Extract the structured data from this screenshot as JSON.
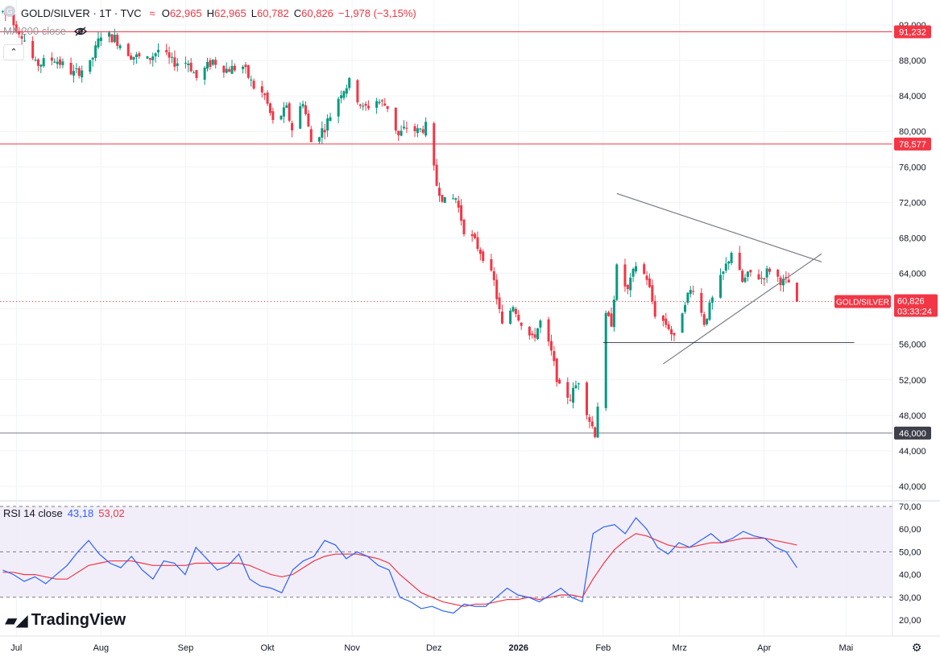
{
  "header": {
    "symbol_line": "GOLD/SILVER · 1T · TVC",
    "wave_icon": "≈",
    "open_label": "O",
    "open": "62,965",
    "high_label": "H",
    "high": "62,965",
    "low_label": "L",
    "low": "60,782",
    "close_label": "C",
    "close": "60,826",
    "change": "−1,978 (−3,15%)"
  },
  "ma_label": "MA 200 close",
  "rsi_header": {
    "label": "RSI 14 close",
    "rsi_value": "43,18",
    "ma_value": "53,02"
  },
  "branding": {
    "name": "TradingView"
  },
  "price_tag": {
    "symbol": "GOLD/SILVER",
    "value": "60,826",
    "countdown": "03:33:24"
  },
  "horizontal_levels": [
    {
      "value": 91.232,
      "label": "91,232",
      "color": "#f23645"
    },
    {
      "value": 78.577,
      "label": "78,577",
      "color": "#f23645"
    },
    {
      "value": 46.0,
      "label": "46,000",
      "color": "#787b86"
    }
  ],
  "colors": {
    "up": "#089981",
    "down": "#f23645",
    "rsi_line": "#2962ff",
    "rsi_ma": "#f23645",
    "trendline": "#787b86",
    "rsi_band": "#ede7f6"
  },
  "chart_data": {
    "type": "candlestick",
    "x_ticks": [
      "Jul",
      "Aug",
      "Sep",
      "Okt",
      "Nov",
      "Dez",
      "2026",
      "Feb",
      "Mrz",
      "Apr",
      "Mai"
    ],
    "y_ticks": [
      "40,000",
      "44,000",
      "48,000",
      "52,000",
      "56,000",
      "60,000",
      "64,000",
      "68,000",
      "72,000",
      "76,000",
      "80,000",
      "84,000",
      "88,000",
      "92,000"
    ],
    "ylim": [
      38.2,
      93.5
    ],
    "last_candle": {
      "open": 62.965,
      "high": 62.965,
      "low": 60.782,
      "close": 60.826
    },
    "series_close": [
      {
        "date": "2025-06-26",
        "close": 93.5
      },
      {
        "date": "2025-07-03",
        "close": 91.0
      },
      {
        "date": "2025-07-08",
        "close": 87.5
      },
      {
        "date": "2025-07-15",
        "close": 88.2
      },
      {
        "date": "2025-07-22",
        "close": 86.5
      },
      {
        "date": "2025-07-28",
        "close": 87.5
      },
      {
        "date": "2025-08-01",
        "close": 91.0
      },
      {
        "date": "2025-08-06",
        "close": 90.5
      },
      {
        "date": "2025-08-12",
        "close": 88.6
      },
      {
        "date": "2025-08-18",
        "close": 88.0
      },
      {
        "date": "2025-08-22",
        "close": 89.2
      },
      {
        "date": "2025-08-27",
        "close": 87.8
      },
      {
        "date": "2025-09-02",
        "close": 87.8
      },
      {
        "date": "2025-09-05",
        "close": 86.0
      },
      {
        "date": "2025-09-11",
        "close": 88.0
      },
      {
        "date": "2025-09-16",
        "close": 87.0
      },
      {
        "date": "2025-09-22",
        "close": 87.3
      },
      {
        "date": "2025-09-26",
        "close": 85.0
      },
      {
        "date": "2025-09-30",
        "close": 84.0
      },
      {
        "date": "2025-10-03",
        "close": 81.0
      },
      {
        "date": "2025-10-08",
        "close": 82.5
      },
      {
        "date": "2025-10-10",
        "close": 80.3
      },
      {
        "date": "2025-10-14",
        "close": 83.5
      },
      {
        "date": "2025-10-17",
        "close": 78.8
      },
      {
        "date": "2025-10-22",
        "close": 80.5
      },
      {
        "date": "2025-10-28",
        "close": 84.5
      },
      {
        "date": "2025-10-31",
        "close": 85.5
      },
      {
        "date": "2025-11-05",
        "close": 82.5
      },
      {
        "date": "2025-11-10",
        "close": 83.5
      },
      {
        "date": "2025-11-14",
        "close": 82.8
      },
      {
        "date": "2025-11-18",
        "close": 79.5
      },
      {
        "date": "2025-11-21",
        "close": 80.5
      },
      {
        "date": "2025-11-25",
        "close": 80.0
      },
      {
        "date": "2025-11-28",
        "close": 80.5
      },
      {
        "date": "2025-12-02",
        "close": 74.0
      },
      {
        "date": "2025-12-05",
        "close": 72.0
      },
      {
        "date": "2025-12-09",
        "close": 72.5
      },
      {
        "date": "2025-12-12",
        "close": 69.0
      },
      {
        "date": "2025-12-16",
        "close": 67.5
      },
      {
        "date": "2025-12-19",
        "close": 66.0
      },
      {
        "date": "2025-12-23",
        "close": 63.0
      },
      {
        "date": "2025-12-26",
        "close": 58.0
      },
      {
        "date": "2025-12-30",
        "close": 60.5
      },
      {
        "date": "2026-01-02",
        "close": 58.5
      },
      {
        "date": "2026-01-06",
        "close": 56.5
      },
      {
        "date": "2026-01-09",
        "close": 58.5
      },
      {
        "date": "2026-01-13",
        "close": 55.0
      },
      {
        "date": "2026-01-16",
        "close": 51.0
      },
      {
        "date": "2026-01-20",
        "close": 50.0
      },
      {
        "date": "2026-01-23",
        "close": 52.0
      },
      {
        "date": "2026-01-27",
        "close": 47.5
      },
      {
        "date": "2026-01-29",
        "close": 46.0
      },
      {
        "date": "2026-02-02",
        "close": 59.0
      },
      {
        "date": "2026-02-04",
        "close": 58.5
      },
      {
        "date": "2026-02-06",
        "close": 64.5
      },
      {
        "date": "2026-02-10",
        "close": 62.0
      },
      {
        "date": "2026-02-13",
        "close": 65.0
      },
      {
        "date": "2026-02-17",
        "close": 63.5
      },
      {
        "date": "2026-02-20",
        "close": 59.5
      },
      {
        "date": "2026-02-25",
        "close": 58.0
      },
      {
        "date": "2026-02-27",
        "close": 56.5
      },
      {
        "date": "2026-03-03",
        "close": 61.0
      },
      {
        "date": "2026-03-06",
        "close": 62.5
      },
      {
        "date": "2026-03-10",
        "close": 58.5
      },
      {
        "date": "2026-03-13",
        "close": 61.0
      },
      {
        "date": "2026-03-17",
        "close": 64.0
      },
      {
        "date": "2026-03-20",
        "close": 66.5
      },
      {
        "date": "2026-03-24",
        "close": 63.0
      },
      {
        "date": "2026-03-27",
        "close": 64.0
      },
      {
        "date": "2026-03-31",
        "close": 63.5
      },
      {
        "date": "2026-04-03",
        "close": 64.5
      },
      {
        "date": "2026-04-06",
        "close": 63.5
      },
      {
        "date": "2026-04-08",
        "close": 63.0
      },
      {
        "date": "2026-04-10",
        "close": 62.965
      },
      {
        "date": "2026-04-13",
        "close": 60.826
      }
    ],
    "trendlines": [
      {
        "name": "upper",
        "from": {
          "date": "2026-02-06",
          "value": 73.0
        },
        "to": {
          "date": "2026-04-22",
          "value": 65.3
        }
      },
      {
        "name": "lower",
        "from": {
          "date": "2026-02-23",
          "value": 53.8
        },
        "to": {
          "date": "2026-04-22",
          "value": 66.2
        }
      },
      {
        "name": "support",
        "from": {
          "date": "2026-02-01",
          "value": 56.2
        },
        "to": {
          "date": "2026-05-04",
          "value": 56.2
        }
      }
    ],
    "rsi_panel": {
      "y_ticks": [
        "20,00",
        "30,00",
        "40,00",
        "50,00",
        "60,00",
        "70,00"
      ],
      "ylim": [
        15,
        72
      ],
      "overbought": 70,
      "oversold": 30,
      "midline": 50,
      "rsi": [
        42,
        40,
        37,
        39,
        36,
        40,
        44,
        50,
        55,
        49,
        45,
        43,
        48,
        42,
        38,
        46,
        45,
        40,
        52,
        47,
        42,
        44,
        49,
        38,
        35,
        34,
        32,
        42,
        46,
        48,
        55,
        53,
        47,
        50,
        48,
        44,
        42,
        30,
        28,
        25,
        26,
        24,
        23,
        27,
        26,
        26,
        30,
        34,
        31,
        30,
        28,
        31,
        34,
        30,
        28,
        58,
        61,
        62,
        58,
        65,
        60,
        52,
        49,
        54,
        52,
        55,
        58,
        54,
        56,
        59,
        57,
        56,
        52,
        50,
        43
      ],
      "rsi_ma": [
        41,
        41,
        40,
        40,
        39,
        38,
        38,
        41,
        44,
        45,
        46,
        46,
        46,
        45,
        44,
        44,
        44,
        44,
        45,
        45,
        45,
        45,
        45,
        44,
        42,
        40,
        39,
        40,
        43,
        46,
        48,
        49,
        49,
        49,
        48,
        47,
        45,
        40,
        36,
        32,
        30,
        28,
        27,
        26,
        27,
        27,
        28,
        29,
        29,
        30,
        29,
        30,
        31,
        31,
        30,
        38,
        45,
        51,
        55,
        58,
        57,
        55,
        53,
        52,
        52,
        53,
        54,
        54,
        55,
        56,
        56,
        56,
        55,
        54,
        53
      ]
    }
  }
}
